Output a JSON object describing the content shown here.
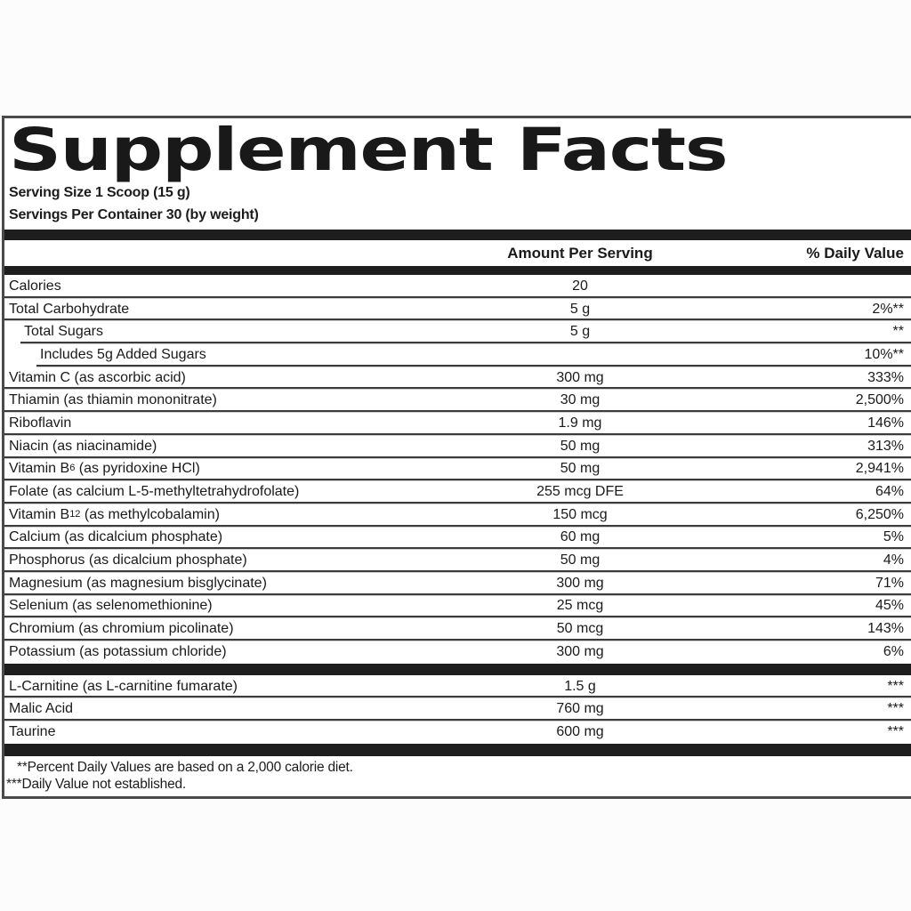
{
  "label": {
    "title": "Supplement Facts",
    "serving_size": "Serving Size 1 Scoop (15 g)",
    "servings_per_container": "Servings Per Container 30 (by weight)",
    "columns": {
      "amount": "Amount Per Serving",
      "daily_value": "% Daily Value"
    },
    "nutrients": [
      {
        "indent": 0,
        "name": "Calories",
        "amount": "20",
        "daily_value": ""
      },
      {
        "indent": 0,
        "name": "Total Carbohydrate",
        "amount": "5 g",
        "daily_value": "2%**"
      },
      {
        "indent": 1,
        "name": "Total Sugars",
        "amount": "5 g",
        "daily_value": "**"
      },
      {
        "indent": 2,
        "name": "Includes 5g Added Sugars",
        "amount": "",
        "daily_value": "10%**"
      },
      {
        "indent": 0,
        "name": "Vitamin C (as ascorbic acid)",
        "amount": "300 mg",
        "daily_value": "333%"
      },
      {
        "indent": 0,
        "name": "Thiamin (as thiamin mononitrate)",
        "amount": "30 mg",
        "daily_value": "2,500%"
      },
      {
        "indent": 0,
        "name": "Riboflavin",
        "amount": "1.9 mg",
        "daily_value": "146%"
      },
      {
        "indent": 0,
        "name": "Niacin (as niacinamide)",
        "amount": "50 mg",
        "daily_value": "313%"
      },
      {
        "indent": 0,
        "name": "Vitamin B",
        "sub": "6",
        "name_rest": " (as pyridoxine HCl)",
        "amount": "50 mg",
        "daily_value": "2,941%"
      },
      {
        "indent": 0,
        "name": "Folate (as calcium L-5-methyltetrahydrofolate)",
        "amount": "255 mcg DFE",
        "daily_value": "64%"
      },
      {
        "indent": 0,
        "name": "Vitamin B",
        "sub": "12",
        "name_rest": " (as methylcobalamin)",
        "amount": "150 mcg",
        "daily_value": "6,250%"
      },
      {
        "indent": 0,
        "name": "Calcium (as dicalcium phosphate)",
        "amount": "60 mg",
        "daily_value": "5%"
      },
      {
        "indent": 0,
        "name": "Phosphorus (as dicalcium phosphate)",
        "amount": "50 mg",
        "daily_value": "4%"
      },
      {
        "indent": 0,
        "name": "Magnesium (as magnesium bisglycinate)",
        "amount": "300 mg",
        "daily_value": "71%"
      },
      {
        "indent": 0,
        "name": "Selenium (as selenomethionine)",
        "amount": "25 mcg",
        "daily_value": "45%"
      },
      {
        "indent": 0,
        "name": "Chromium (as chromium picolinate)",
        "amount": "50 mcg",
        "daily_value": "143%"
      },
      {
        "indent": 0,
        "name": "Potassium (as potassium chloride)",
        "amount": "300 mg",
        "daily_value": "6%"
      }
    ],
    "other_ingredients": [
      {
        "indent": 0,
        "name": "L-Carnitine (as L-carnitine fumarate)",
        "amount": "1.5 g",
        "daily_value": "***"
      },
      {
        "indent": 0,
        "name": "Malic Acid",
        "amount": "760 mg",
        "daily_value": "***"
      },
      {
        "indent": 0,
        "name": "Taurine",
        "amount": "600 mg",
        "daily_value": "***"
      }
    ],
    "footnotes": [
      "**Percent Daily Values are based on a 2,000 calorie diet.",
      "***Daily Value not established."
    ]
  },
  "colors": {
    "text": "#1a1a1a",
    "thick_bar": "#1e1e1e",
    "panel_border": "#4a4a4a",
    "hairline": "#3b3b3b",
    "panel_background": "#ffffff",
    "page_background": "#fcfcfc"
  }
}
